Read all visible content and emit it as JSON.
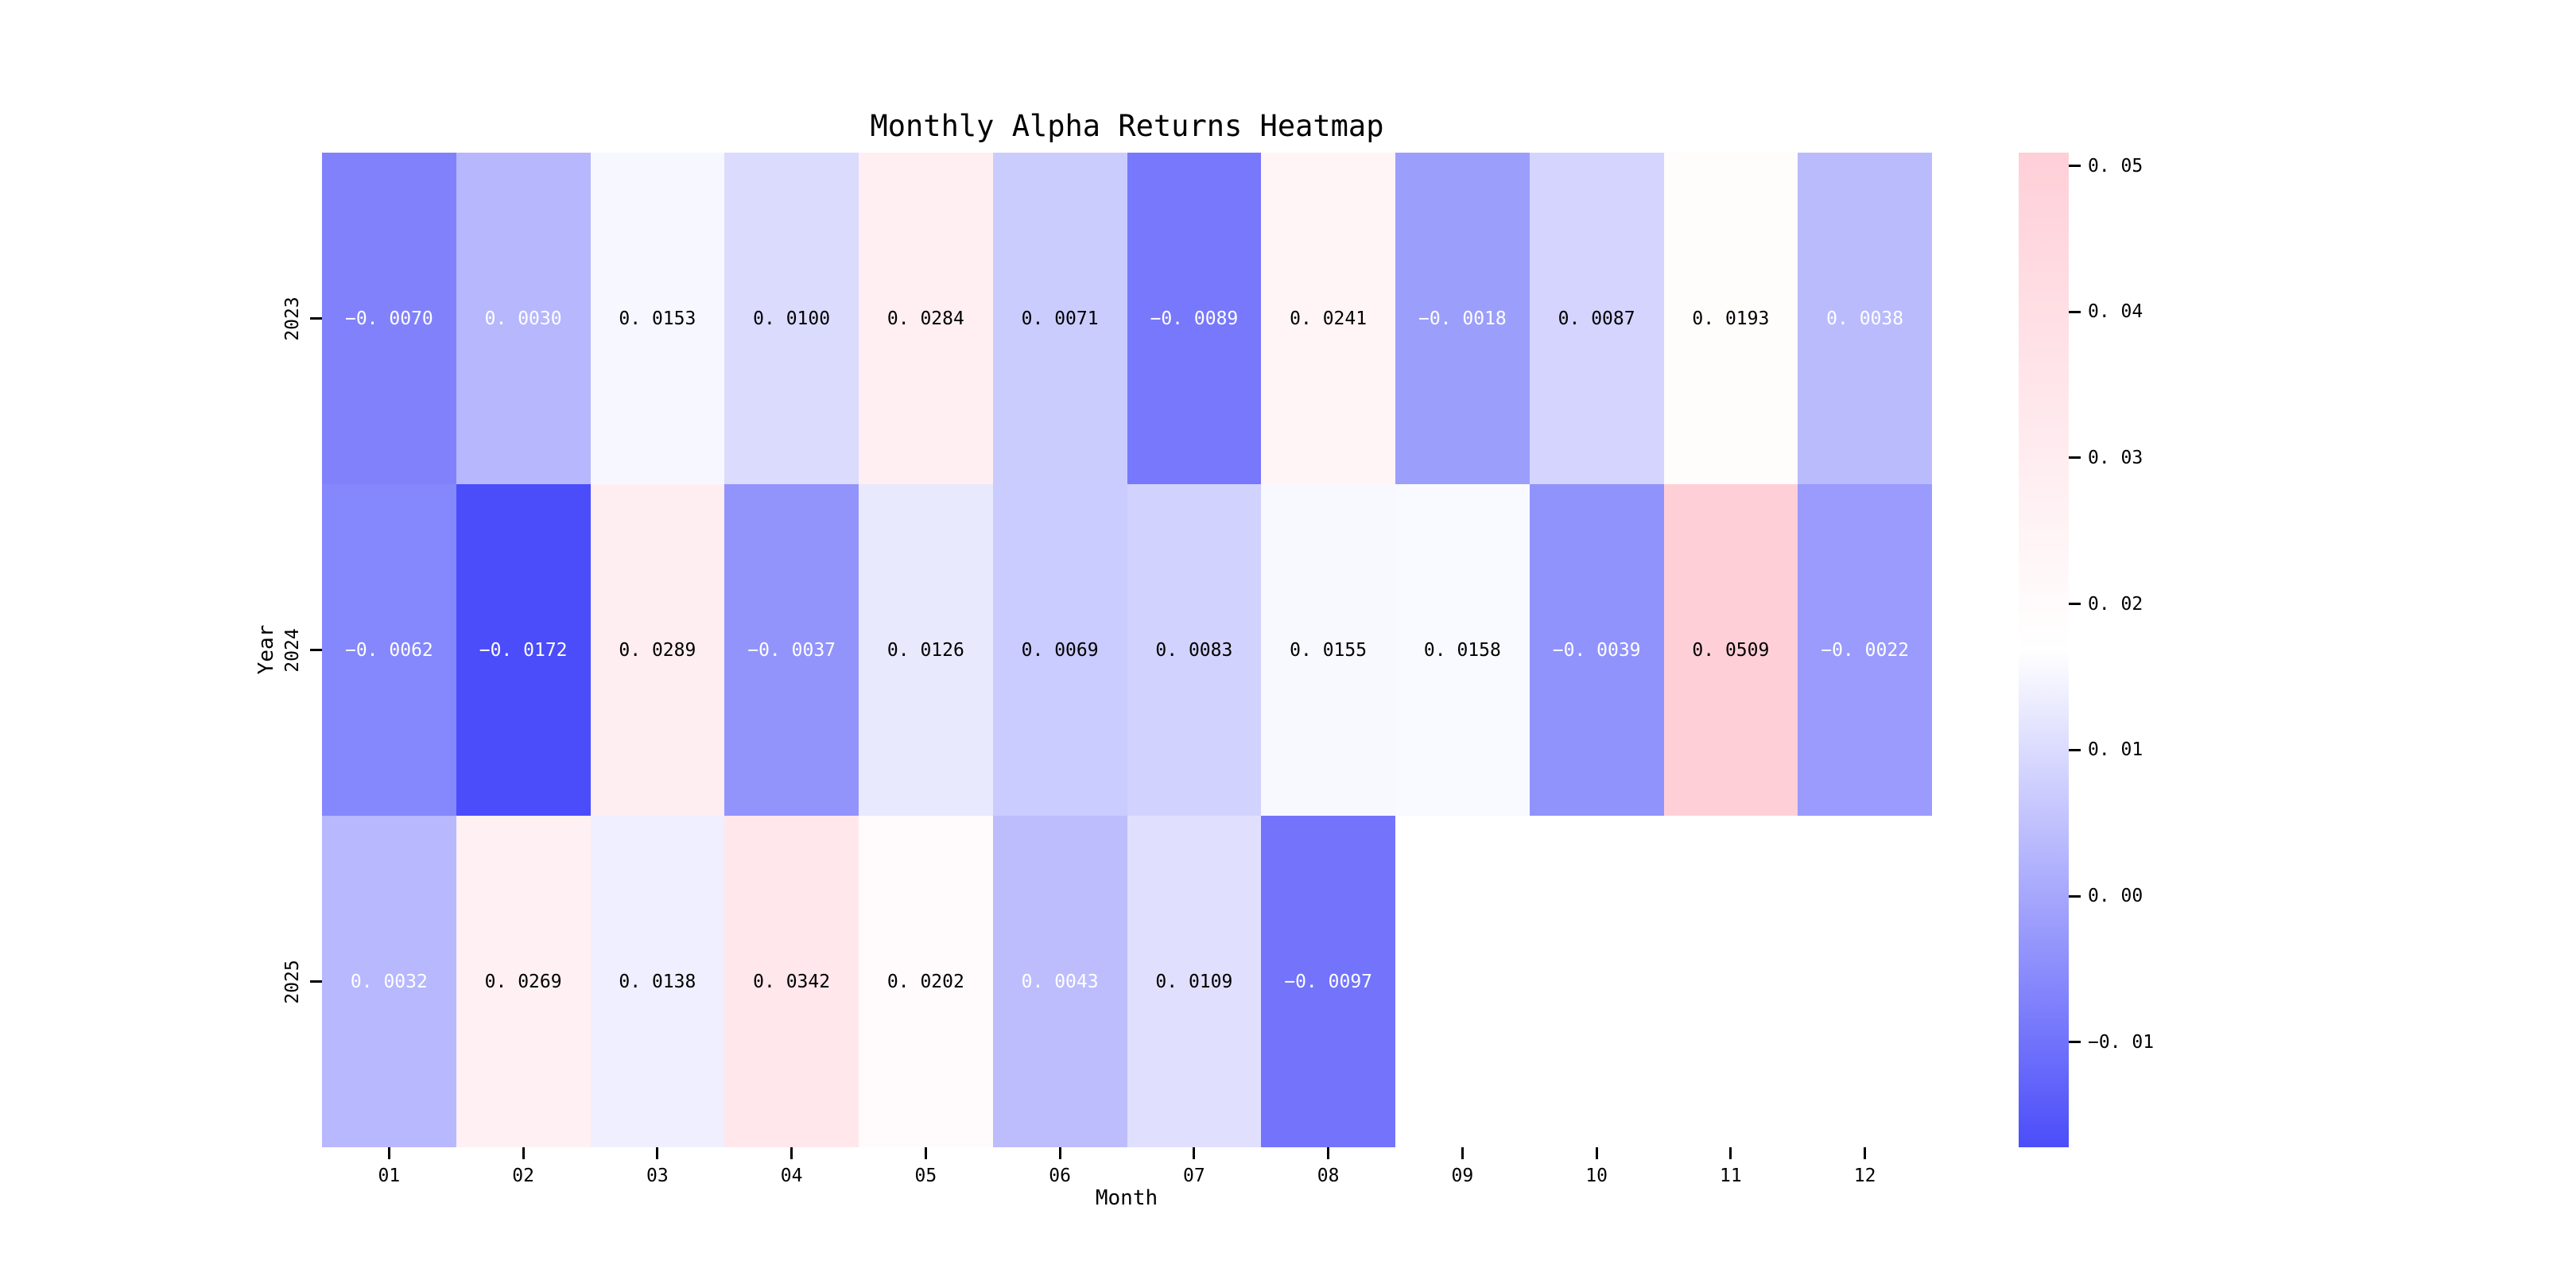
{
  "chart_data": {
    "type": "heatmap",
    "title": "Monthly Alpha Returns Heatmap",
    "xlabel": "Month",
    "ylabel": "Year",
    "x_categories": [
      "01",
      "02",
      "03",
      "04",
      "05",
      "06",
      "07",
      "08",
      "09",
      "10",
      "11",
      "12"
    ],
    "y_categories": [
      "2023",
      "2024",
      "2025"
    ],
    "rows": [
      [
        -0.007,
        0.003,
        0.0153,
        0.01,
        0.0284,
        0.0071,
        -0.0089,
        0.0241,
        -0.0018,
        0.0087,
        0.0193,
        0.0038
      ],
      [
        -0.0062,
        -0.0172,
        0.0289,
        -0.0037,
        0.0126,
        0.0069,
        0.0083,
        0.0155,
        0.0158,
        -0.0039,
        0.0509,
        -0.0022
      ],
      [
        0.0032,
        0.0269,
        0.0138,
        0.0342,
        0.0202,
        0.0043,
        0.0109,
        -0.0097,
        null,
        null,
        null,
        null
      ]
    ],
    "vmin": -0.0172,
    "vmax": 0.0509,
    "value_decimals": 4,
    "colormap": {
      "low": "#4b4dfa",
      "mid": "#ffffff",
      "high": "#ffcfd8"
    },
    "annotation_text_colors": {
      "on_dark": "#ffffff",
      "on_light": "#000000"
    },
    "colorbar_ticks": [
      0.05,
      0.04,
      0.03,
      0.02,
      0.01,
      0.0,
      -0.01
    ],
    "colorbar_tick_decimals": 2,
    "legend_position": "right",
    "grid": false,
    "background": "#ffffff"
  }
}
